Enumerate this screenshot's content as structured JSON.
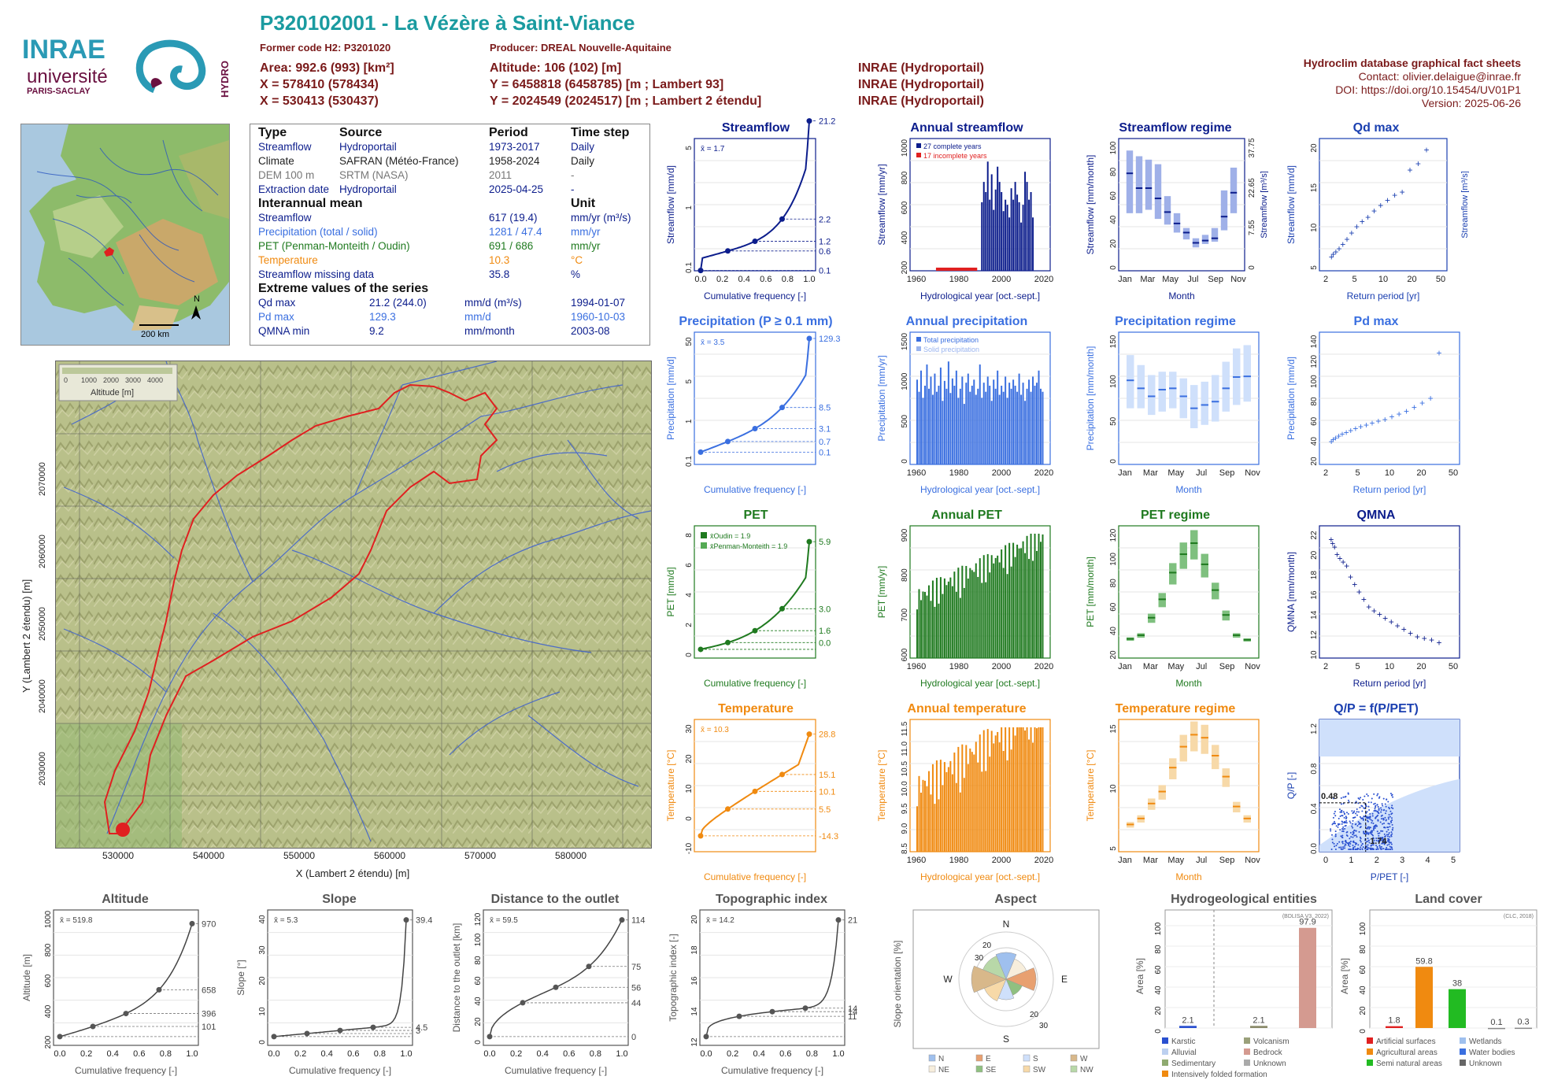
{
  "header": {
    "title": "P320102001 - La Vézère à Saint-Viance",
    "former_code": "Former code H2: P3201020",
    "producer": "Producer: DREAL Nouvelle-Aquitaine",
    "area": "Area: 992.6 (993) [km²]",
    "altitude": "Altitude: 106 (102) [m]",
    "x93": "X = 578410 (578434)",
    "y93": "Y = 6458818 (6458785) [m ; Lambert 93]",
    "x2e": "X = 530413 (530437)",
    "y2e": "Y = 2024549 (2024517) [m ; Lambert 2 étendu]",
    "src1": "INRAE (Hydroportail)",
    "src2": "INRAE (Hydroportail)",
    "src3": "INRAE (Hydroportail)",
    "db_title": "Hydroclim database graphical fact sheets",
    "contact": "Contact: olivier.delaigue@inrae.fr",
    "doi": "DOI: https://doi.org/10.15454/UV01P1",
    "version": "Version: 2025-06-26"
  },
  "logos": {
    "inrae": "INRAE",
    "universite": "université",
    "paris_saclay": "PARIS-SACLAY",
    "hydro": "HYDRO"
  },
  "minimap": {
    "scale": "200 km",
    "north": "N"
  },
  "table": {
    "h_type": "Type",
    "h_source": "Source",
    "h_period": "Period",
    "h_step": "Time step",
    "r1": [
      "Streamflow",
      "Hydroportail",
      "1973-2017",
      "Daily"
    ],
    "r2": [
      "Climate",
      "SAFRAN (Météo-France)",
      "1958-2024",
      "Daily"
    ],
    "r3": [
      "DEM 100 m",
      "SRTM (NASA)",
      "2011",
      "-"
    ],
    "r4": [
      "Extraction date",
      "Hydroportail",
      "2025-04-25",
      "-"
    ],
    "h_inter": "Interannual mean",
    "h_unit": "Unit",
    "m1": [
      "Streamflow",
      "617 (19.4)",
      "mm/yr (m³/s)"
    ],
    "m2": [
      "Precipitation (total / solid)",
      "1281 / 47.4",
      "mm/yr"
    ],
    "m3": [
      "PET (Penman-Monteith / Oudin)",
      "691 / 686",
      "mm/yr"
    ],
    "m4": [
      "Temperature",
      "10.3",
      "°C"
    ],
    "m5": [
      "Streamflow missing data",
      "35.8",
      "%"
    ],
    "h_ext": "Extreme values of the series",
    "e1": [
      "Qd max",
      "21.2 (244.0)",
      "mm/d (m³/s)",
      "1994-01-07"
    ],
    "e2": [
      "Pd max",
      "129.3",
      "mm/d",
      "1960-10-03"
    ],
    "e3": [
      "QMNA min",
      "9.2",
      "mm/month",
      "2003-08"
    ]
  },
  "map": {
    "xlabel": "X (Lambert 2 étendu) [m]",
    "ylabel": "Y (Lambert 2 étendu) [m]",
    "xticks": [
      "530000",
      "540000",
      "550000",
      "560000",
      "570000",
      "580000"
    ],
    "yticks": [
      "2030000",
      "2040000",
      "2050000",
      "2060000",
      "2070000"
    ],
    "legend_title": "Altitude [m]",
    "legend_ticks": [
      "0",
      "1000",
      "2000",
      "3000",
      "4000"
    ]
  },
  "colors": {
    "streamflow": "#0c1d8c",
    "precip": "#3a6fe0",
    "pet": "#1f7a1f",
    "temp": "#f08a10",
    "qp": "#1a3fb0",
    "grey": "#555555",
    "red": "#e02020"
  },
  "chart_data": [
    {
      "id": "streamflow_cdf",
      "type": "line",
      "title": "Streamflow",
      "xlabel": "Cumulative frequency [-]",
      "ylabel": "Streamflow [mm/d]",
      "mean": "x̄ = 1.7",
      "log": true,
      "x": [
        0,
        0.02,
        0.1,
        0.25,
        0.5,
        0.75,
        0.9,
        0.97,
        1.0
      ],
      "y": [
        0.1,
        0.25,
        0.35,
        0.6,
        1.2,
        2.2,
        3.5,
        6,
        21.2
      ],
      "markers": [
        [
          0,
          0.1
        ],
        [
          0.25,
          0.6
        ],
        [
          0.5,
          1.2
        ],
        [
          0.75,
          2.2
        ],
        [
          1.0,
          21.2
        ]
      ],
      "right_labels": [
        "21.2",
        "2.2",
        "1.2",
        "0.6",
        "0.1"
      ],
      "yticklabels": [
        "0.1",
        "1",
        "5"
      ],
      "xticklabels": [
        "0.0",
        "0.2",
        "0.4",
        "0.6",
        "0.8",
        "1.0"
      ]
    },
    {
      "id": "annual_streamflow",
      "type": "bar",
      "title": "Annual streamflow",
      "xlabel": "Hydrological year [oct.-sept.]",
      "ylabel": "Streamflow [mm/yr]",
      "legend": [
        "27 complete years",
        "17 incomplete years"
      ],
      "xticklabels": [
        "1960",
        "1980",
        "2000",
        "2020"
      ],
      "yticklabels": [
        "200",
        "400",
        "600",
        "800",
        "1000"
      ],
      "ylim": [
        0,
        1050
      ],
      "x": [
        1991,
        1992,
        1993,
        1994,
        1995,
        1996,
        1997,
        1998,
        1999,
        2000,
        2001,
        2002,
        2003,
        2004,
        2005,
        2006,
        2007,
        2008,
        2009,
        2010,
        2011,
        2012,
        2013,
        2014,
        2015,
        2016,
        2017
      ],
      "values": [
        540,
        700,
        620,
        860,
        560,
        760,
        480,
        640,
        820,
        700,
        620,
        470,
        560,
        520,
        420,
        650,
        560,
        700,
        600,
        540,
        380,
        520,
        780,
        700,
        560,
        620,
        420
      ]
    },
    {
      "id": "streamflow_regime",
      "type": "bar",
      "title": "Streamflow regime",
      "xlabel": "Month",
      "ylabel": "Streamflow [mm/month]",
      "ylabel2": "Streamflow [m³/s]",
      "categories": [
        "Jan",
        "Feb",
        "Mar",
        "Apr",
        "May",
        "Jun",
        "Jul",
        "Aug",
        "Sep",
        "Oct",
        "Nov",
        "Dec"
      ],
      "xticklabels": [
        "Jan",
        "Mar",
        "May",
        "Jul",
        "Sep",
        "Nov"
      ],
      "yticklabels": [
        "0",
        "20",
        "40",
        "60",
        "80",
        "100"
      ],
      "right_ticks": [
        "0",
        "7.55",
        "22.65",
        "37.75"
      ],
      "median": [
        80,
        67,
        67,
        58,
        46,
        36,
        28,
        19,
        21,
        23,
        42,
        63
      ],
      "low": [
        45,
        45,
        48,
        40,
        35,
        28,
        22,
        15,
        18,
        20,
        30,
        45
      ],
      "high": [
        100,
        95,
        92,
        88,
        60,
        45,
        32,
        23,
        26,
        32,
        65,
        85
      ]
    },
    {
      "id": "qd_max",
      "type": "scatter",
      "title": "Qd max",
      "xlabel": "Return period [yr]",
      "ylabel": "Streamflow [mm/d]",
      "ylabel2": "Streamflow [m³/s]",
      "xticklabels": [
        "2",
        "5",
        "10",
        "20",
        "50"
      ],
      "yticklabels": [
        "5",
        "10",
        "15",
        "20"
      ],
      "points": [
        4.2,
        4.6,
        5.0,
        5.5,
        6.2,
        7.0,
        8.0,
        9.0,
        9.8,
        10.5,
        11.5,
        12.4,
        13.2,
        14.0,
        14.5,
        18.0,
        19.0,
        21.2
      ]
    },
    {
      "id": "precip_cdf",
      "type": "line",
      "title": "Precipitation (P ≥ 0.1 mm)",
      "xlabel": "Cumulative frequency [-]",
      "ylabel": "Precipitation [mm/d]",
      "mean": "x̄ = 3.5",
      "log": true,
      "markers": [
        [
          0,
          0.1
        ],
        [
          0.25,
          0.7
        ],
        [
          0.5,
          3.1
        ],
        [
          0.75,
          8.5
        ],
        [
          1.0,
          129.3
        ]
      ],
      "right_labels": [
        "129.3",
        "8.5",
        "3.1",
        "0.7",
        "0.1"
      ],
      "yticklabels": [
        "0.1",
        "1",
        "5",
        "50"
      ]
    },
    {
      "id": "annual_precip",
      "type": "bar",
      "title": "Annual precipitation",
      "xlabel": "Hydrological year [oct.-sept.]",
      "ylabel": "Precipitation [mm/yr]",
      "legend": [
        "Total precipitation",
        "Solid precipitation"
      ],
      "xticklabels": [
        "1960",
        "1980",
        "2000",
        "2020"
      ],
      "yticklabels": [
        "0",
        "500",
        "1000",
        "1500"
      ],
      "values": [
        1400,
        1200,
        1550,
        1100,
        1300,
        1650,
        1250,
        1450,
        1150,
        1500,
        1200,
        1300,
        1600,
        1050,
        1380,
        1250,
        1700,
        1180,
        1420,
        1300,
        1550,
        1100,
        1250,
        1450,
        1000,
        1350,
        1500,
        1200,
        1300,
        1400,
        1150,
        1250,
        1650,
        1100,
        1350,
        1200,
        1450,
        1300,
        1050,
        1400,
        1250,
        1550,
        1150,
        1300,
        1200,
        1450,
        1100,
        1350,
        1250,
        1400,
        1300,
        1200,
        1500,
        1150,
        1350,
        1050,
        1250,
        1400,
        1200,
        1450,
        1300,
        1350,
        1550,
        1250,
        1200
      ]
    },
    {
      "id": "precip_regime",
      "type": "bar",
      "title": "Precipitation regime",
      "xlabel": "Month",
      "ylabel": "Precipitation [mm/month]",
      "xticklabels": [
        "Jan",
        "Mar",
        "May",
        "Jul",
        "Sep",
        "Nov"
      ],
      "yticklabels": [
        "0",
        "50",
        "100",
        "150"
      ],
      "median": [
        117,
        105,
        93,
        103,
        105,
        93,
        75,
        80,
        85,
        105,
        122,
        123
      ],
      "low": [
        75,
        75,
        65,
        70,
        75,
        60,
        45,
        50,
        55,
        70,
        80,
        85
      ],
      "high": [
        155,
        140,
        125,
        130,
        130,
        120,
        110,
        115,
        125,
        145,
        165,
        170
      ]
    },
    {
      "id": "pd_max",
      "type": "scatter",
      "title": "Pd max",
      "xlabel": "Return period [yr]",
      "ylabel": "Precipitation [mm/d]",
      "xticklabels": [
        "2",
        "5",
        "10",
        "20",
        "50"
      ],
      "yticklabels": [
        "20",
        "40",
        "60",
        "80",
        "100",
        "120",
        "140"
      ],
      "points": [
        33,
        35,
        37,
        39,
        41,
        43,
        45,
        47,
        49,
        51,
        53,
        55,
        57,
        60,
        63,
        66,
        70,
        75,
        80,
        129.3
      ]
    },
    {
      "id": "pet_cdf",
      "type": "line",
      "title": "PET",
      "xlabel": "Cumulative frequency [-]",
      "ylabel": "PET [mm/d]",
      "legend": [
        "x̄Oudin = 1.9",
        "x̄Penman-Monteith = 1.9"
      ],
      "right_labels": [
        "5.9",
        "3.0",
        "1.6",
        "0.0"
      ],
      "yticklabels": [
        "0",
        "2",
        "4",
        "6",
        "8"
      ],
      "markers": [
        [
          0,
          0.1
        ],
        [
          0.25,
          0.6
        ],
        [
          0.5,
          1.6
        ],
        [
          0.75,
          3.0
        ],
        [
          1.0,
          5.9
        ]
      ]
    },
    {
      "id": "annual_pet",
      "type": "bar",
      "title": "Annual PET",
      "xlabel": "Hydrological year [oct.-sept.]",
      "ylabel": "PET [mm/yr]",
      "xticklabels": [
        "1960",
        "1980",
        "2000",
        "2020"
      ],
      "yticklabels": [
        "600",
        "700",
        "800",
        "900"
      ]
    },
    {
      "id": "pet_regime",
      "type": "bar",
      "title": "PET regime",
      "xlabel": "Month",
      "ylabel": "PET [mm/month]",
      "xticklabels": [
        "Jan",
        "Mar",
        "May",
        "Jul",
        "Sep",
        "Nov"
      ],
      "yticklabels": [
        "20",
        "40",
        "60",
        "80",
        "100",
        "120"
      ],
      "median": [
        14,
        18,
        37,
        57,
        86,
        106,
        118,
        95,
        67,
        40,
        18,
        13
      ]
    },
    {
      "id": "qmna",
      "type": "scatter",
      "title": "QMNA",
      "xlabel": "Return period [yr]",
      "ylabel": "QMNA [mm/month]",
      "xticklabels": [
        "2",
        "5",
        "10",
        "20",
        "50"
      ],
      "yticklabels": [
        "10",
        "12",
        "14",
        "16",
        "18",
        "20",
        "22"
      ],
      "points": [
        23,
        22.5,
        22,
        21,
        20.5,
        20,
        19.5,
        18,
        17,
        16,
        15,
        14,
        13.5,
        13,
        12.5,
        12,
        11.5,
        11,
        10.5,
        10,
        9.8,
        9.6,
        9.2
      ]
    },
    {
      "id": "temp_cdf",
      "type": "line",
      "title": "Temperature",
      "xlabel": "Cumulative frequency [-]",
      "ylabel": "Temperature [°C]",
      "mean": "x̄ = 10.3",
      "right_labels": [
        "28.8",
        "15.1",
        "10.1",
        "5.5",
        "-14.3"
      ],
      "yticklabels": [
        "-10",
        "0",
        "10",
        "20",
        "30"
      ],
      "markers": [
        [
          0,
          -14.3
        ],
        [
          0.25,
          5.5
        ],
        [
          0.5,
          10.1
        ],
        [
          0.75,
          15.1
        ],
        [
          1.0,
          28.8
        ]
      ]
    },
    {
      "id": "annual_temp",
      "type": "bar",
      "title": "Annual temperature",
      "xlabel": "Hydrological year [oct.-sept.]",
      "ylabel": "Temperature [°C]",
      "xticklabels": [
        "1960",
        "1980",
        "2000",
        "2020"
      ],
      "yticklabels": [
        "8.5",
        "9.0",
        "9.5",
        "10.0",
        "10.5",
        "11.0",
        "11.5"
      ]
    },
    {
      "id": "temp_regime",
      "type": "bar",
      "title": "Temperature regime",
      "xlabel": "Month",
      "ylabel": "Temperature [°C]",
      "xticklabels": [
        "Jan",
        "Mar",
        "May",
        "Jul",
        "Sep",
        "Nov"
      ],
      "yticklabels": [
        "5",
        "10",
        "15"
      ],
      "median": [
        3.5,
        4.5,
        7,
        9,
        13,
        16.5,
        18.5,
        18,
        15,
        11.5,
        6.5,
        4.5
      ]
    },
    {
      "id": "qp",
      "type": "scatter",
      "title": "Q/P = f(P/PET)",
      "xlabel": "P/PET [-]",
      "ylabel": "Q/P [-]",
      "xticklabels": [
        "0",
        "1",
        "2",
        "3",
        "4",
        "5"
      ],
      "yticklabels": [
        "0.0",
        "0.4",
        "0.8",
        "1.2"
      ],
      "labels": [
        "0.48",
        "1.74"
      ]
    },
    {
      "id": "altitude",
      "type": "line",
      "title": "Altitude",
      "xlabel": "Cumulative frequency [-]",
      "ylabel": "Altitude [m]",
      "mean": "x̄ = 519.8",
      "right_labels": [
        "970",
        "658",
        "396",
        "101"
      ],
      "yticklabels": [
        "200",
        "400",
        "600",
        "800",
        "1000"
      ]
    },
    {
      "id": "slope",
      "type": "line",
      "title": "Slope",
      "xlabel": "Cumulative frequency [-]",
      "ylabel": "Slope [°]",
      "mean": "x̄ = 5.3",
      "right_labels": [
        "39.4",
        "4.5",
        "3"
      ],
      "yticklabels": [
        "0",
        "10",
        "20",
        "30",
        "40"
      ]
    },
    {
      "id": "distance",
      "type": "line",
      "title": "Distance to the outlet",
      "xlabel": "Cumulative frequency [-]",
      "ylabel": "Distance to the outlet [km]",
      "mean": "x̄ = 59.5",
      "right_labels": [
        "114",
        "75",
        "56",
        "44",
        "0"
      ],
      "yticklabels": [
        "0",
        "20",
        "40",
        "60",
        "80",
        "100",
        "120"
      ]
    },
    {
      "id": "topo",
      "type": "line",
      "title": "Topographic index",
      "xlabel": "Cumulative frequency [-]",
      "ylabel": "Topographic index [-]",
      "mean": "x̄ = 14.2",
      "right_labels": [
        "21",
        "14",
        "14",
        "11"
      ],
      "yticklabels": [
        "12",
        "14",
        "16",
        "18",
        "20"
      ]
    },
    {
      "id": "aspect",
      "type": "pie",
      "title": "Aspect",
      "ylabel": "Slope orientation [%]",
      "compass": [
        "N",
        "E",
        "S",
        "W"
      ],
      "rings": [
        "20",
        "30",
        "20",
        "30"
      ],
      "legend": [
        "N",
        "E",
        "S",
        "W",
        "NE",
        "SE",
        "SW",
        "NW"
      ]
    },
    {
      "id": "hydrogeo",
      "type": "bar",
      "title": "Hydrogeological entities",
      "ylabel": "Area [%]",
      "note": "(BDLISA V3, 2022)",
      "yticklabels": [
        "0",
        "20",
        "40",
        "60",
        "80",
        "100"
      ],
      "values": [
        2.1,
        2.1,
        97.9
      ],
      "value_labels": [
        "2.1",
        "2.1",
        "97.9"
      ],
      "legend": [
        "Karstic",
        "Volcanism",
        "Alluvial",
        "Bedrock",
        "Sedimentary",
        "Unknown",
        "Intensively folded formation"
      ]
    },
    {
      "id": "landcover",
      "type": "bar",
      "title": "Land cover",
      "ylabel": "Area [%]",
      "note": "(CLC, 2018)",
      "yticklabels": [
        "0",
        "20",
        "40",
        "60",
        "80",
        "100"
      ],
      "values": [
        1.8,
        59.8,
        38,
        0.1,
        0.3
      ],
      "value_labels": [
        "1.8",
        "59.8",
        "38",
        "0.1",
        "0.3"
      ],
      "legend": [
        "Artificial surfaces",
        "Wetlands",
        "Agricultural areas",
        "Water bodies",
        "Semi natural areas",
        "Unknown"
      ]
    }
  ]
}
